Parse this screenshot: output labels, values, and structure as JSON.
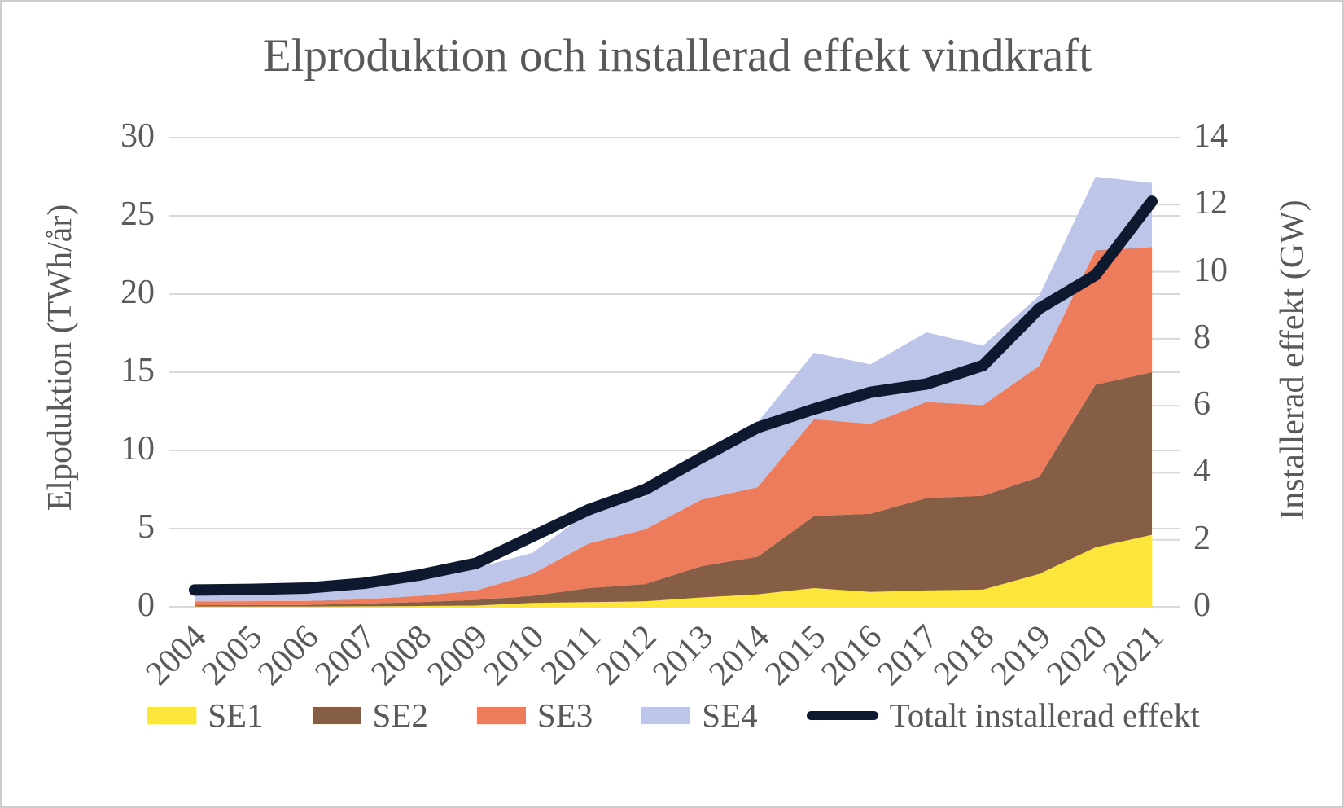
{
  "chart_data": {
    "type": "area",
    "stacked": true,
    "title": "Elproduktion och installerad effekt vindkraft",
    "categories": [
      "2004",
      "2005",
      "2006",
      "2007",
      "2008",
      "2009",
      "2010",
      "2011",
      "2012",
      "2013",
      "2014",
      "2015",
      "2016",
      "2017",
      "2018",
      "2019",
      "2020",
      "2021"
    ],
    "series": [
      {
        "name": "SE1",
        "color": "#FCE63B",
        "axis": "left",
        "values": [
          0.02,
          0.02,
          0.02,
          0.03,
          0.05,
          0.08,
          0.25,
          0.3,
          0.35,
          0.6,
          0.8,
          1.2,
          0.95,
          1.05,
          1.1,
          2.1,
          3.8,
          4.6
        ]
      },
      {
        "name": "SE2",
        "color": "#865E45",
        "axis": "left",
        "values": [
          0.08,
          0.09,
          0.1,
          0.17,
          0.25,
          0.36,
          0.45,
          0.9,
          1.1,
          2.0,
          2.4,
          4.6,
          5.0,
          5.9,
          6.0,
          6.2,
          10.4,
          10.4
        ]
      },
      {
        "name": "SE3",
        "color": "#EC7C5B",
        "axis": "left",
        "values": [
          0.25,
          0.25,
          0.26,
          0.28,
          0.4,
          0.6,
          1.4,
          2.85,
          3.5,
          4.25,
          4.45,
          6.2,
          5.75,
          6.15,
          5.8,
          7.1,
          8.6,
          8.0
        ]
      },
      {
        "name": "SE4",
        "color": "#BDC5E8",
        "axis": "left",
        "values": [
          0.5,
          0.58,
          0.61,
          0.95,
          1.3,
          1.45,
          1.35,
          2.0,
          2.1,
          2.95,
          4.15,
          4.25,
          3.8,
          4.45,
          3.8,
          4.5,
          4.7,
          4.1
        ]
      }
    ],
    "line_series": {
      "name": "Totalt installerad effekt",
      "color": "#0E1930",
      "axis": "right",
      "values": [
        0.5,
        0.52,
        0.56,
        0.7,
        0.95,
        1.3,
        2.1,
        2.9,
        3.5,
        4.45,
        5.35,
        5.9,
        6.4,
        6.65,
        7.2,
        8.9,
        9.9,
        12.1
      ]
    },
    "left_axis": {
      "label": "Elpoduktion (TWh/år)",
      "min": 0,
      "max": 30,
      "step": 5,
      "ticks": [
        "0",
        "5",
        "10",
        "15",
        "20",
        "25",
        "30"
      ]
    },
    "right_axis": {
      "label": "Installerad effekt (GW)",
      "min": 0,
      "max": 14,
      "step": 2,
      "ticks": [
        "0",
        "2",
        "4",
        "6",
        "8",
        "10",
        "12",
        "14"
      ]
    },
    "grid": true,
    "legend_position": "bottom",
    "colors": {
      "grid": "#D9D9D9",
      "text": "#595959",
      "background": "#FFFFFF",
      "border": "#CCCCCC"
    }
  }
}
